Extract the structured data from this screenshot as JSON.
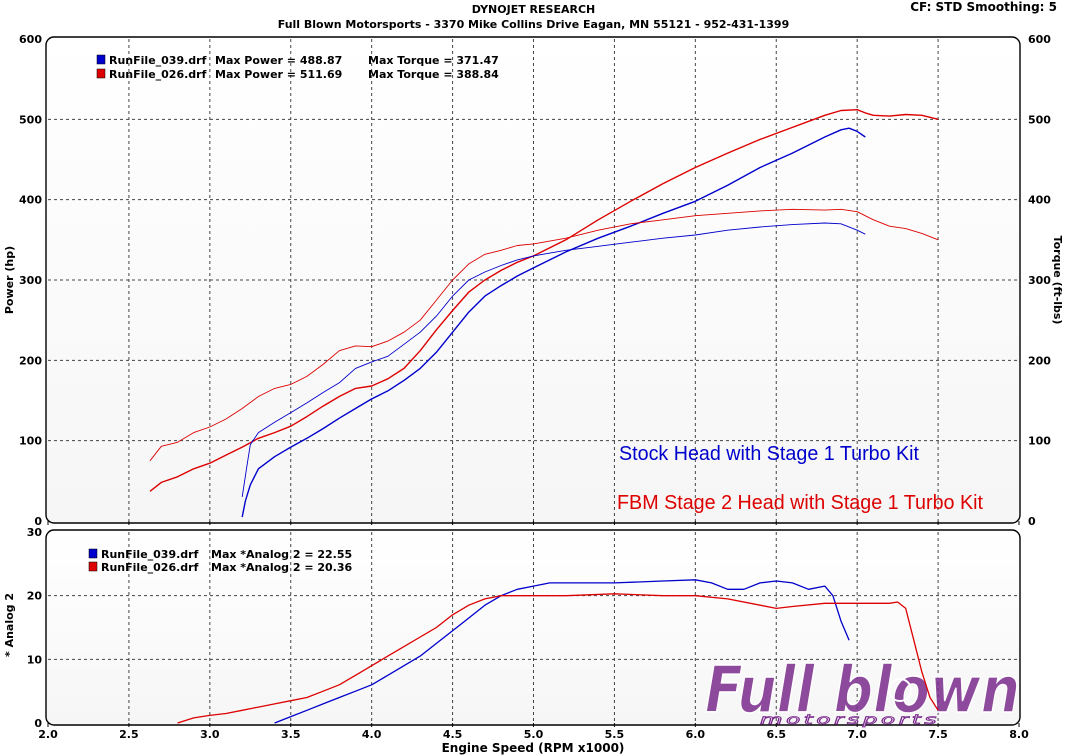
{
  "header": {
    "title": "DYNOJET RESEARCH",
    "subtitle": "Full Blown Motorsports - 3370 Mike Collins Drive  Eagan, MN 55121 - 952-431-1399",
    "cf": "CF: STD  Smoothing: 5"
  },
  "logo": {
    "text": "Full blown",
    "subtext": "motorsports"
  },
  "colors": {
    "blue": "#0000cc",
    "red": "#dd0000",
    "logo": "#7a2a8c"
  },
  "chart_data": [
    {
      "type": "line",
      "title": "",
      "xlabel": "",
      "ylabel": "Power (hp)",
      "y2label": "Torque (ft-lbs)",
      "xlim": [
        2.0,
        8.0
      ],
      "ylim": [
        0,
        600
      ],
      "y2lim": [
        0,
        600
      ],
      "grid": true,
      "y_ticks": [
        "0",
        "100",
        "200",
        "300",
        "400",
        "500",
        "600"
      ],
      "legend": [
        {
          "file": "RunFile_039.drf",
          "power_text": "Max Power = 488.87",
          "torque_text": "Max Torque = 371.47",
          "color": "blue"
        },
        {
          "file": "RunFile_026.drf",
          "power_text": "Max Power = 511.69",
          "torque_text": "Max Torque = 388.84",
          "color": "red"
        }
      ],
      "annotations": [
        {
          "text": "Stock Head with Stage 1 Turbo Kit",
          "color": "blue"
        },
        {
          "text": "FBM Stage 2 Head with Stage 1 Turbo Kit",
          "color": "red"
        }
      ],
      "series": [
        {
          "color": "blue",
          "kind": "power",
          "x": [
            3.2,
            3.22,
            3.25,
            3.3,
            3.4,
            3.5,
            3.6,
            3.7,
            3.8,
            3.9,
            4.0,
            4.1,
            4.2,
            4.3,
            4.4,
            4.5,
            4.6,
            4.7,
            4.8,
            4.9,
            5.0,
            5.2,
            5.4,
            5.6,
            5.8,
            6.0,
            6.2,
            6.4,
            6.6,
            6.8,
            6.9,
            6.95,
            7.0,
            7.05
          ],
          "y": [
            5,
            25,
            45,
            65,
            80,
            92,
            103,
            115,
            128,
            140,
            152,
            162,
            175,
            190,
            210,
            235,
            260,
            280,
            293,
            305,
            315,
            335,
            352,
            367,
            383,
            398,
            418,
            440,
            458,
            478,
            487,
            489,
            485,
            478
          ]
        },
        {
          "color": "red",
          "kind": "power",
          "x": [
            2.63,
            2.7,
            2.8,
            2.9,
            3.0,
            3.1,
            3.2,
            3.3,
            3.4,
            3.5,
            3.6,
            3.7,
            3.8,
            3.9,
            4.0,
            4.1,
            4.2,
            4.3,
            4.4,
            4.5,
            4.6,
            4.7,
            4.8,
            4.9,
            5.0,
            5.2,
            5.4,
            5.6,
            5.8,
            6.0,
            6.2,
            6.4,
            6.6,
            6.8,
            6.9,
            7.0,
            7.05,
            7.1,
            7.2,
            7.3,
            7.4,
            7.5
          ],
          "y": [
            37,
            48,
            55,
            65,
            72,
            82,
            92,
            103,
            110,
            118,
            130,
            143,
            155,
            165,
            168,
            177,
            190,
            212,
            238,
            262,
            285,
            300,
            312,
            322,
            330,
            350,
            375,
            398,
            420,
            440,
            458,
            475,
            490,
            505,
            511,
            512,
            508,
            505,
            504,
            506,
            505,
            500
          ]
        },
        {
          "color": "blue",
          "kind": "torque",
          "x": [
            3.2,
            3.23,
            3.25,
            3.3,
            3.4,
            3.5,
            3.6,
            3.7,
            3.8,
            3.9,
            4.0,
            4.1,
            4.2,
            4.3,
            4.4,
            4.5,
            4.6,
            4.7,
            4.8,
            4.9,
            5.0,
            5.2,
            5.4,
            5.6,
            5.8,
            6.0,
            6.2,
            6.4,
            6.6,
            6.8,
            6.9,
            7.0,
            7.05
          ],
          "y": [
            30,
            70,
            95,
            110,
            123,
            135,
            147,
            160,
            172,
            190,
            198,
            205,
            220,
            235,
            255,
            280,
            300,
            310,
            318,
            325,
            330,
            337,
            342,
            347,
            352,
            356,
            362,
            366,
            369,
            371,
            370,
            362,
            357
          ]
        },
        {
          "color": "red",
          "kind": "torque",
          "x": [
            2.63,
            2.7,
            2.8,
            2.9,
            3.0,
            3.1,
            3.2,
            3.3,
            3.4,
            3.5,
            3.6,
            3.7,
            3.8,
            3.9,
            4.0,
            4.1,
            4.2,
            4.3,
            4.4,
            4.5,
            4.6,
            4.7,
            4.8,
            4.9,
            5.0,
            5.2,
            5.4,
            5.6,
            5.8,
            6.0,
            6.2,
            6.4,
            6.6,
            6.8,
            6.9,
            7.0,
            7.1,
            7.2,
            7.3,
            7.4,
            7.5
          ],
          "y": [
            75,
            93,
            98,
            110,
            117,
            127,
            140,
            155,
            165,
            170,
            180,
            195,
            212,
            218,
            217,
            224,
            235,
            250,
            275,
            300,
            320,
            332,
            337,
            343,
            345,
            352,
            362,
            370,
            375,
            380,
            383,
            386,
            388,
            387,
            388,
            385,
            375,
            367,
            364,
            358,
            350
          ]
        }
      ]
    },
    {
      "type": "line",
      "title": "",
      "xlabel": "Engine Speed (RPM x1000)",
      "ylabel": "* Analog 2",
      "xlim": [
        2.0,
        8.0
      ],
      "ylim": [
        0,
        30
      ],
      "grid": true,
      "x_ticks": [
        "2.0",
        "2.5",
        "3.0",
        "3.5",
        "4.0",
        "4.5",
        "5.0",
        "5.5",
        "6.0",
        "6.5",
        "7.0",
        "7.5",
        "8.0"
      ],
      "y_ticks": [
        "0",
        "10",
        "20",
        "30"
      ],
      "legend": [
        {
          "file": "RunFile_039.drf",
          "text": "Max *Analog 2 = 22.55",
          "color": "blue"
        },
        {
          "file": "RunFile_026.drf",
          "text": "Max *Analog 2 = 20.36",
          "color": "red"
        }
      ],
      "series": [
        {
          "color": "blue",
          "x": [
            3.4,
            3.5,
            3.6,
            3.7,
            3.8,
            3.9,
            4.0,
            4.1,
            4.2,
            4.3,
            4.4,
            4.5,
            4.6,
            4.7,
            4.8,
            4.9,
            5.0,
            5.1,
            5.2,
            5.5,
            5.8,
            6.0,
            6.1,
            6.2,
            6.3,
            6.4,
            6.5,
            6.6,
            6.7,
            6.8,
            6.85,
            6.9,
            6.95
          ],
          "y": [
            0,
            1,
            2,
            3,
            4,
            5,
            6,
            7.5,
            9,
            10.5,
            12.5,
            14.5,
            16.5,
            18.5,
            20,
            21,
            21.5,
            22,
            22,
            22,
            22.3,
            22.5,
            22,
            21,
            21,
            22,
            22.3,
            22,
            21,
            21.5,
            20,
            16,
            13
          ]
        },
        {
          "color": "red",
          "x": [
            2.8,
            2.9,
            3.0,
            3.1,
            3.2,
            3.3,
            3.4,
            3.5,
            3.6,
            3.7,
            3.8,
            3.9,
            4.0,
            4.1,
            4.2,
            4.3,
            4.4,
            4.5,
            4.6,
            4.7,
            4.8,
            4.9,
            5.0,
            5.2,
            5.5,
            5.8,
            6.0,
            6.2,
            6.4,
            6.5,
            6.6,
            6.8,
            7.0,
            7.2,
            7.25,
            7.3,
            7.35,
            7.4,
            7.45,
            7.5
          ],
          "y": [
            0,
            0.8,
            1.2,
            1.5,
            2,
            2.5,
            3,
            3.5,
            4,
            5,
            6,
            7.5,
            9,
            10.5,
            12,
            13.5,
            15,
            17,
            18.5,
            19.5,
            20,
            20,
            20,
            20,
            20.3,
            20,
            20,
            19.5,
            18.5,
            18,
            18.3,
            18.8,
            18.8,
            18.8,
            19,
            18,
            13,
            8,
            4,
            2
          ]
        }
      ]
    }
  ]
}
